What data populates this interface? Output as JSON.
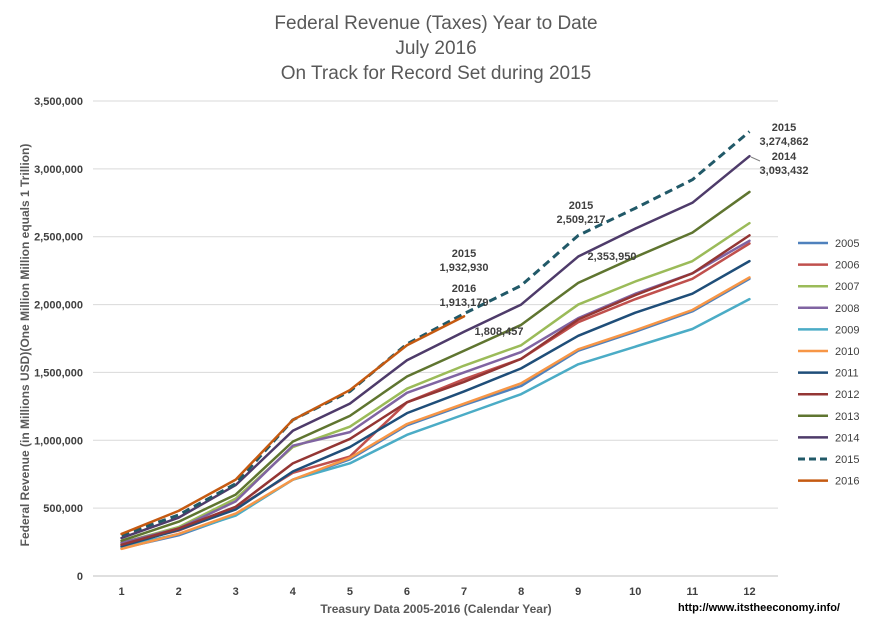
{
  "chart_data": {
    "type": "line",
    "title_lines": [
      "Federal Revenue (Taxes) Year to Date",
      "July 2016",
      "On Track for Record Set during 2015"
    ],
    "xlabel": "Treasury Data 2005-2016 (Calendar Year)",
    "ylabel": "Federal Revenue (in Millions USD)(One Million Million equals 1 Trillion)",
    "x": [
      1,
      2,
      3,
      4,
      5,
      6,
      7,
      8,
      9,
      10,
      11,
      12
    ],
    "x_tick_labels": [
      "1",
      "2",
      "3",
      "4",
      "5",
      "6",
      "7",
      "8",
      "9",
      "10",
      "11",
      "12"
    ],
    "ylim": [
      0,
      3500000
    ],
    "y_tick_labels": [
      "0",
      "500,000",
      "1,000,000",
      "1,500,000",
      "2,000,000",
      "2,500,000",
      "3,000,000",
      "3,500,000"
    ],
    "grid": true,
    "legend_position": "right",
    "source_text": "http://www.itstheeconomy.info/",
    "series": [
      {
        "name": "2005",
        "color": "#4f81bd",
        "dashed": false,
        "values": [
          205000,
          300000,
          450000,
          710000,
          860000,
          1110000,
          1260000,
          1400000,
          1660000,
          1800000,
          1950000,
          2190000
        ]
      },
      {
        "name": "2006",
        "color": "#c0504d",
        "dashed": false,
        "values": [
          235000,
          335000,
          500000,
          760000,
          880000,
          1280000,
          1450000,
          1600000,
          1870000,
          2040000,
          2190000,
          2450000
        ]
      },
      {
        "name": "2007",
        "color": "#9bbb59",
        "dashed": false,
        "values": [
          245000,
          360000,
          570000,
          950000,
          1100000,
          1380000,
          1550000,
          1700000,
          2000000,
          2170000,
          2320000,
          2600000
        ]
      },
      {
        "name": "2008",
        "color": "#8064a2",
        "dashed": false,
        "values": [
          245000,
          350000,
          550000,
          960000,
          1060000,
          1350000,
          1500000,
          1650000,
          1900000,
          2080000,
          2230000,
          2470000
        ]
      },
      {
        "name": "2009",
        "color": "#4bacc6",
        "dashed": false,
        "values": [
          215000,
          310000,
          445000,
          710000,
          830000,
          1040000,
          1190000,
          1340000,
          1560000,
          1690000,
          1820000,
          2040000
        ]
      },
      {
        "name": "2010",
        "color": "#f79646",
        "dashed": false,
        "values": [
          200000,
          310000,
          460000,
          710000,
          870000,
          1120000,
          1270000,
          1420000,
          1670000,
          1810000,
          1960000,
          2200000
        ]
      },
      {
        "name": "2011",
        "color": "#1f4e79",
        "dashed": false,
        "values": [
          220000,
          340000,
          490000,
          770000,
          950000,
          1200000,
          1360000,
          1530000,
          1770000,
          1940000,
          2080000,
          2320000
        ]
      },
      {
        "name": "2012",
        "color": "#943634",
        "dashed": false,
        "values": [
          230000,
          350000,
          510000,
          830000,
          1010000,
          1280000,
          1430000,
          1600000,
          1890000,
          2070000,
          2230000,
          2510000
        ]
      },
      {
        "name": "2013",
        "color": "#5f7530",
        "dashed": false,
        "values": [
          260000,
          400000,
          600000,
          990000,
          1180000,
          1470000,
          1660000,
          1850000,
          2160000,
          2350000,
          2530000,
          2830000
        ]
      },
      {
        "name": "2014",
        "color": "#4e3b6a",
        "dashed": false,
        "values": [
          280000,
          430000,
          670000,
          1070000,
          1270000,
          1590000,
          1800000,
          2000000,
          2354000,
          2560000,
          2750000,
          3093432
        ]
      },
      {
        "name": "2015",
        "color": "#215968",
        "dashed": true,
        "values": [
          300000,
          450000,
          680000,
          1150000,
          1360000,
          1710000,
          1932930,
          2140000,
          2509217,
          2710000,
          2920000,
          3274862
        ]
      },
      {
        "name": "2016",
        "color": "#c55a11",
        "dashed": false,
        "values": [
          310000,
          480000,
          710000,
          1150000,
          1370000,
          1700000,
          1913179,
          null,
          null,
          null,
          null,
          null
        ]
      }
    ],
    "annotations": [
      {
        "lines": [
          "2015",
          "1,932,930"
        ]
      },
      {
        "lines": [
          "2016",
          "1,913,179"
        ]
      },
      {
        "lines": [
          "1,808,457"
        ]
      },
      {
        "lines": [
          "2015",
          "2,509,217"
        ]
      },
      {
        "lines": [
          "2,353,950"
        ]
      },
      {
        "lines": [
          "2015",
          "3,274,862"
        ]
      },
      {
        "lines": [
          "2014",
          "3,093,432"
        ]
      }
    ]
  }
}
